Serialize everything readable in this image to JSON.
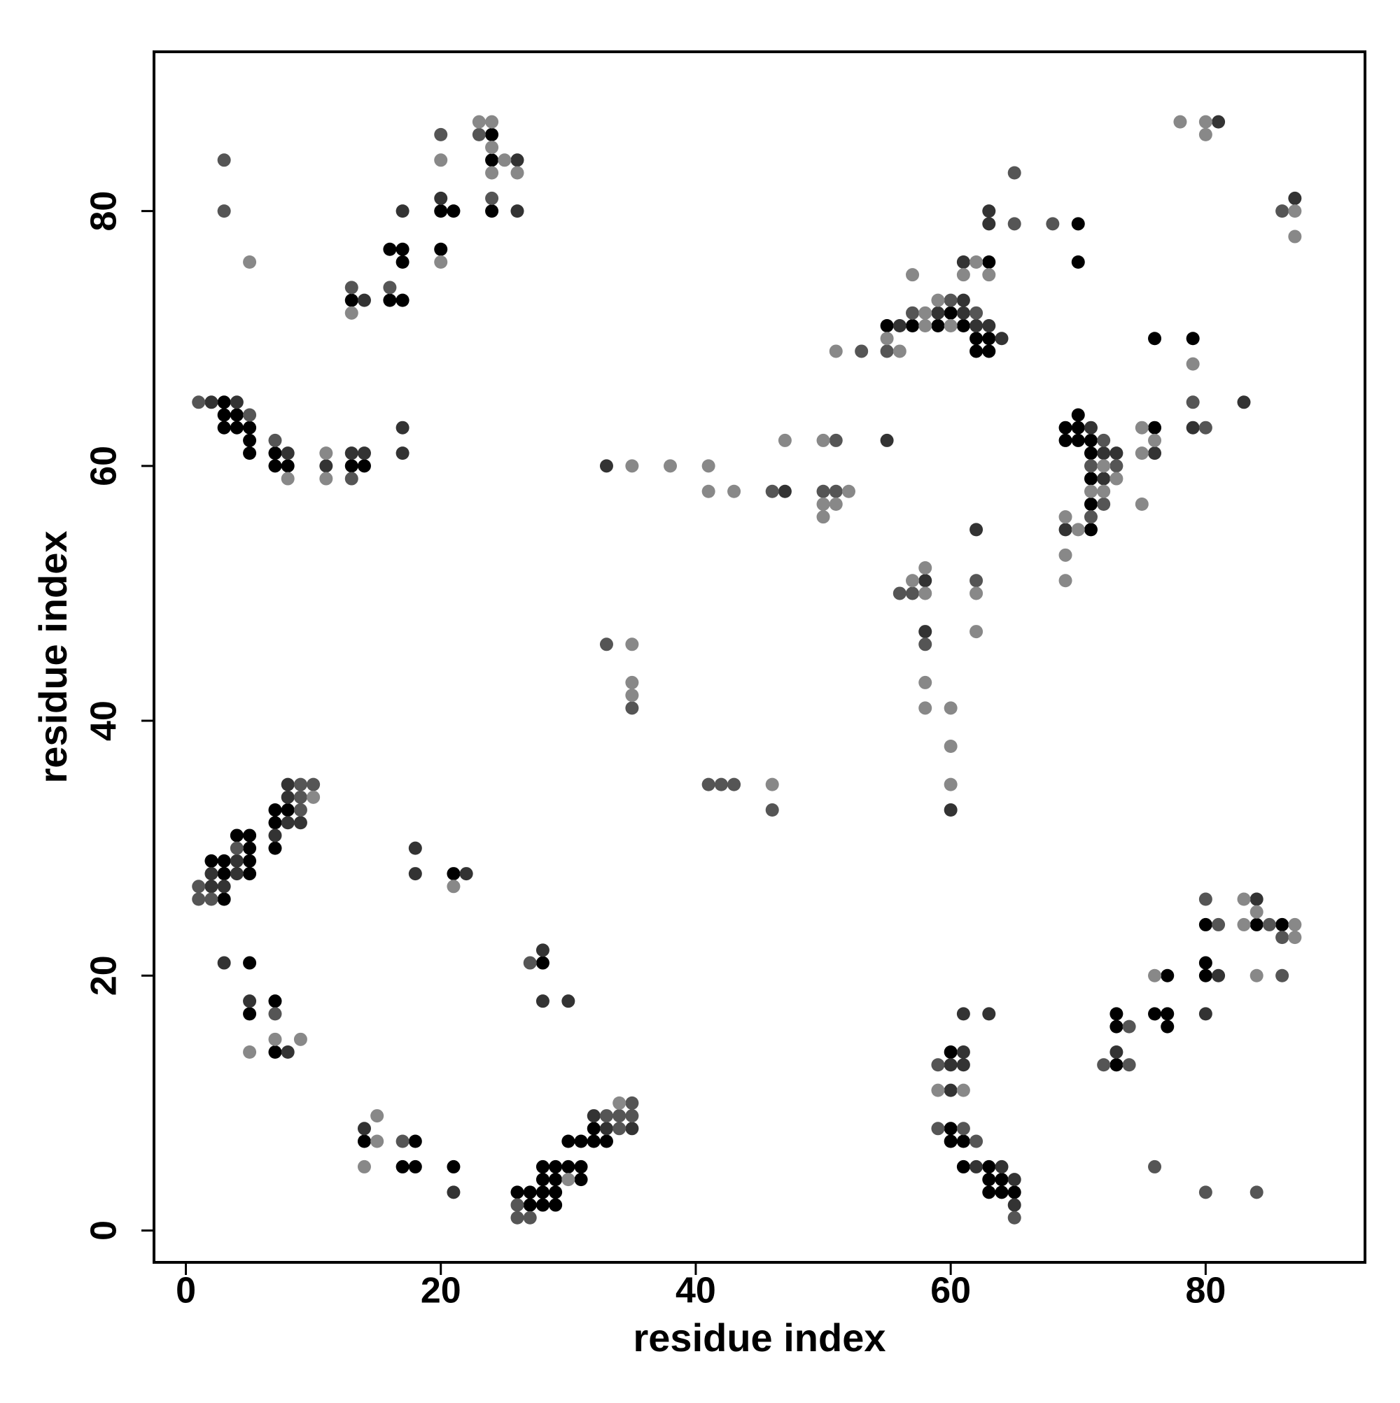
{
  "chart_data": {
    "type": "scatter",
    "x_label": "residue index",
    "y_label": "residue index",
    "xlim": [
      -2.5,
      92.5
    ],
    "ylim": [
      -2.5,
      92.5
    ],
    "xticks": [
      0,
      20,
      40,
      60,
      80
    ],
    "yticks": [
      0,
      20,
      40,
      60,
      80
    ],
    "series": [
      {
        "color": "#000000",
        "x": [
          13,
          16,
          17,
          17,
          16,
          17,
          20,
          21,
          20,
          24,
          24,
          24,
          3,
          3,
          4,
          3,
          4,
          5,
          5,
          5,
          7,
          7,
          8,
          13,
          14,
          3,
          3,
          5,
          2,
          3,
          5,
          5,
          4,
          5,
          7,
          7,
          7,
          8,
          21,
          5,
          5,
          7,
          7,
          14,
          18,
          17,
          18,
          21,
          26,
          27,
          27,
          28,
          29,
          28,
          29,
          28,
          29,
          31,
          28,
          29,
          30,
          31,
          30,
          31,
          32,
          33,
          32,
          28,
          55,
          57,
          59,
          60,
          61,
          62,
          63,
          62,
          63,
          63,
          70,
          70,
          60,
          60,
          60,
          61,
          61,
          63,
          63,
          64,
          63,
          64,
          65,
          69,
          70,
          70,
          69,
          70,
          71,
          71,
          71,
          71,
          71,
          76,
          76,
          79,
          73,
          73,
          73,
          76,
          77,
          77,
          77,
          80,
          80,
          80,
          84,
          86
        ],
        "values": [
          73,
          77,
          77,
          76,
          73,
          73,
          80,
          80,
          77,
          86,
          84,
          80,
          65,
          64,
          64,
          63,
          63,
          63,
          62,
          61,
          61,
          60,
          60,
          60,
          60,
          26,
          28,
          28,
          29,
          29,
          29,
          30,
          31,
          31,
          30,
          32,
          33,
          33,
          28,
          21,
          17,
          18,
          14,
          7,
          7,
          5,
          5,
          5,
          3,
          3,
          2,
          2,
          2,
          3,
          3,
          4,
          4,
          4,
          5,
          5,
          5,
          5,
          7,
          7,
          7,
          7,
          8,
          21,
          71,
          71,
          71,
          72,
          71,
          70,
          70,
          69,
          69,
          76,
          79,
          76,
          14,
          8,
          7,
          7,
          5,
          5,
          4,
          4,
          3,
          3,
          3,
          63,
          63,
          64,
          62,
          62,
          62,
          61,
          59,
          57,
          55,
          63,
          70,
          70,
          13,
          17,
          16,
          17,
          17,
          16,
          20,
          21,
          20,
          24,
          24,
          24
        ]
      },
      {
        "color": "#333333",
        "x": [
          14,
          17,
          20,
          26,
          26,
          2,
          4,
          8,
          11,
          13,
          14,
          17,
          17,
          2,
          3,
          2,
          4,
          4,
          7,
          8,
          9,
          8,
          8,
          18,
          18,
          22,
          3,
          5,
          8,
          14,
          21,
          28,
          28,
          30,
          33,
          35,
          32,
          33,
          47,
          55,
          56,
          59,
          61,
          61,
          62,
          63,
          64,
          61,
          63,
          63,
          58,
          58,
          60,
          62,
          61,
          60,
          61,
          60,
          61,
          62,
          64,
          65,
          65,
          63,
          71,
          72,
          73,
          72,
          69,
          76,
          79,
          83,
          81,
          87,
          73,
          80,
          81,
          84
        ],
        "values": [
          73,
          80,
          81,
          84,
          80,
          65,
          65,
          61,
          60,
          61,
          61,
          63,
          61,
          27,
          27,
          28,
          28,
          29,
          31,
          32,
          32,
          34,
          35,
          30,
          28,
          28,
          21,
          18,
          14,
          8,
          3,
          22,
          18,
          18,
          8,
          8,
          9,
          60,
          58,
          62,
          71,
          72,
          73,
          72,
          71,
          71,
          70,
          76,
          80,
          79,
          51,
          47,
          33,
          55,
          14,
          13,
          13,
          11,
          17,
          5,
          5,
          4,
          2,
          17,
          63,
          61,
          61,
          59,
          55,
          61,
          63,
          65,
          87,
          81,
          14,
          17,
          20,
          26
        ]
      },
      {
        "color": "#555555",
        "x": [
          3,
          3,
          13,
          16,
          20,
          23,
          24,
          1,
          5,
          7,
          13,
          1,
          1,
          2,
          4,
          9,
          9,
          9,
          10,
          7,
          17,
          26,
          26,
          27,
          34,
          33,
          34,
          35,
          35,
          27,
          46,
          51,
          50,
          51,
          33,
          35,
          41,
          42,
          43,
          46,
          53,
          55,
          57,
          60,
          62,
          65,
          65,
          68,
          56,
          57,
          58,
          62,
          59,
          59,
          61,
          62,
          65,
          72,
          71,
          73,
          72,
          71,
          79,
          80,
          86,
          72,
          74,
          74,
          81,
          80,
          85,
          86,
          86,
          76,
          80,
          84
        ],
        "values": [
          84,
          80,
          74,
          74,
          86,
          86,
          81,
          65,
          64,
          62,
          59,
          27,
          26,
          26,
          30,
          33,
          34,
          35,
          35,
          17,
          7,
          2,
          1,
          1,
          8,
          9,
          9,
          9,
          10,
          21,
          58,
          62,
          58,
          58,
          46,
          41,
          35,
          35,
          35,
          33,
          69,
          69,
          72,
          73,
          72,
          83,
          79,
          79,
          50,
          50,
          46,
          51,
          13,
          8,
          8,
          7,
          1,
          62,
          60,
          60,
          57,
          56,
          65,
          63,
          80,
          13,
          13,
          16,
          24,
          26,
          24,
          23,
          20,
          5,
          3,
          3
        ]
      },
      {
        "color": "#888888",
        "x": [
          5,
          13,
          20,
          20,
          23,
          24,
          24,
          25,
          24,
          26,
          8,
          11,
          11,
          10,
          21,
          7,
          9,
          5,
          15,
          15,
          14,
          30,
          34,
          35,
          38,
          41,
          41,
          43,
          47,
          50,
          52,
          50,
          51,
          50,
          35,
          35,
          35,
          46,
          51,
          55,
          56,
          58,
          57,
          58,
          59,
          60,
          62,
          61,
          63,
          57,
          58,
          58,
          58,
          58,
          60,
          60,
          60,
          62,
          62,
          59,
          61,
          72,
          73,
          71,
          72,
          69,
          70,
          69,
          69,
          75,
          75,
          76,
          75,
          79,
          78,
          80,
          80,
          87,
          87,
          76,
          83,
          84,
          83,
          87,
          87,
          84
        ],
        "values": [
          76,
          72,
          84,
          76,
          87,
          87,
          85,
          84,
          83,
          83,
          59,
          61,
          59,
          34,
          27,
          15,
          15,
          14,
          7,
          9,
          5,
          4,
          10,
          60,
          60,
          60,
          58,
          58,
          62,
          62,
          58,
          57,
          57,
          56,
          46,
          43,
          42,
          35,
          69,
          70,
          69,
          72,
          75,
          71,
          73,
          71,
          76,
          75,
          75,
          51,
          52,
          50,
          43,
          41,
          41,
          38,
          35,
          50,
          47,
          11,
          11,
          60,
          59,
          58,
          58,
          56,
          55,
          53,
          51,
          63,
          61,
          62,
          57,
          68,
          87,
          87,
          86,
          80,
          78,
          20,
          26,
          25,
          24,
          24,
          23,
          20
        ]
      }
    ]
  }
}
